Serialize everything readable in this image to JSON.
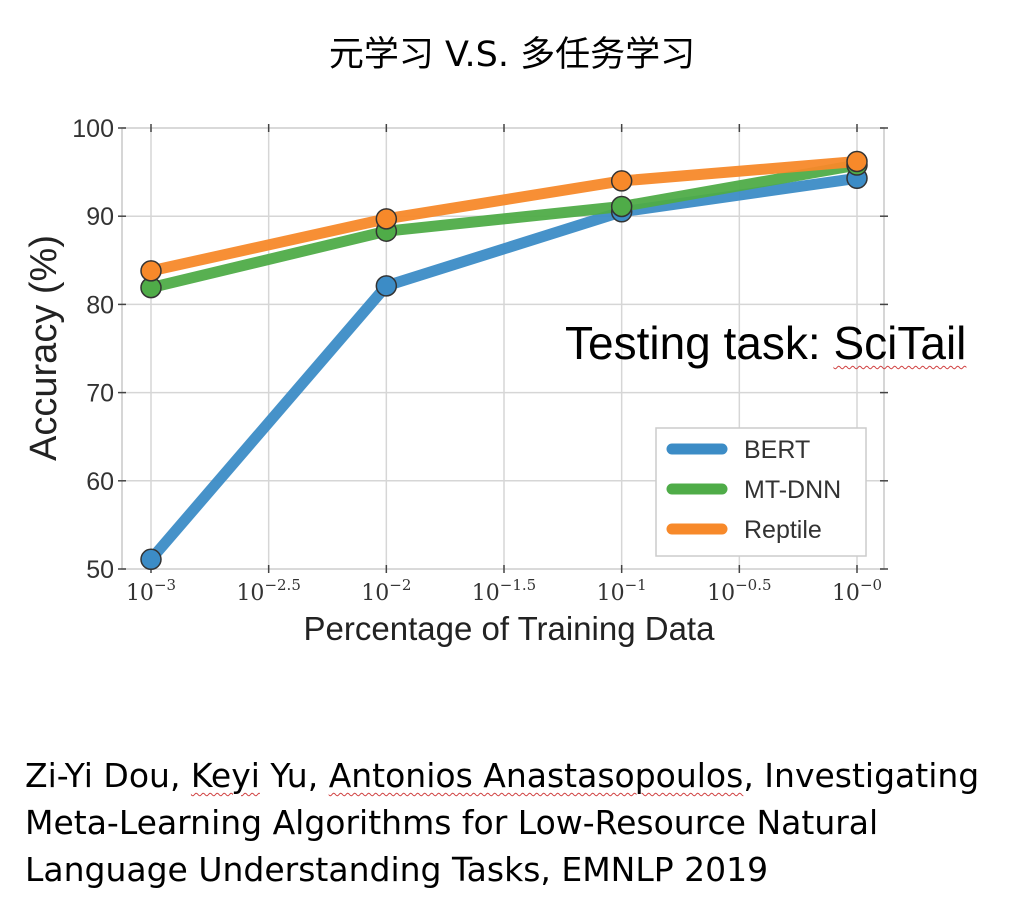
{
  "slide": {
    "title": "元学习 V.S. 多任务学习",
    "annotation_prefix": "Testing task: ",
    "annotation_task": "SciTail",
    "citation": {
      "author1": "Zi-Yi Dou",
      "sep1": ", ",
      "author2": "Keyi",
      "author2_rest": " Yu",
      "sep2": ", ",
      "author3": "Antonios Anastasopoulos",
      "rest": ", Investigating Meta-Learning Algorithms for Low-Resource Natural Language Understanding Tasks, EMNLP 2019"
    }
  },
  "chart_data": {
    "type": "line",
    "x_scale": "log",
    "x": [
      0.001,
      0.01,
      0.1,
      1.0
    ],
    "x_ticks": [
      {
        "base": "10",
        "exp": "−3"
      },
      {
        "base": "10",
        "exp": "−2.5"
      },
      {
        "base": "10",
        "exp": "−2"
      },
      {
        "base": "10",
        "exp": "−1.5"
      },
      {
        "base": "10",
        "exp": "−1"
      },
      {
        "base": "10",
        "exp": "−0.5"
      },
      {
        "base": "10",
        "exp": "−0"
      }
    ],
    "y_ticks": [
      "50",
      "60",
      "70",
      "80",
      "90",
      "100"
    ],
    "ylim": [
      50,
      100
    ],
    "xlabel": "Percentage of Training Data",
    "ylabel": "Accuracy (%)",
    "grid": true,
    "legend_position": "bottom-right",
    "series": [
      {
        "name": "BERT",
        "color": "#3c8cc6",
        "values": [
          51.1,
          82.1,
          90.5,
          94.3
        ]
      },
      {
        "name": "MT-DNN",
        "color": "#4fac48",
        "values": [
          81.9,
          88.3,
          91.1,
          95.8
        ]
      },
      {
        "name": "Reptile",
        "color": "#f7892a",
        "values": [
          83.8,
          89.7,
          94.0,
          96.2
        ]
      }
    ]
  }
}
